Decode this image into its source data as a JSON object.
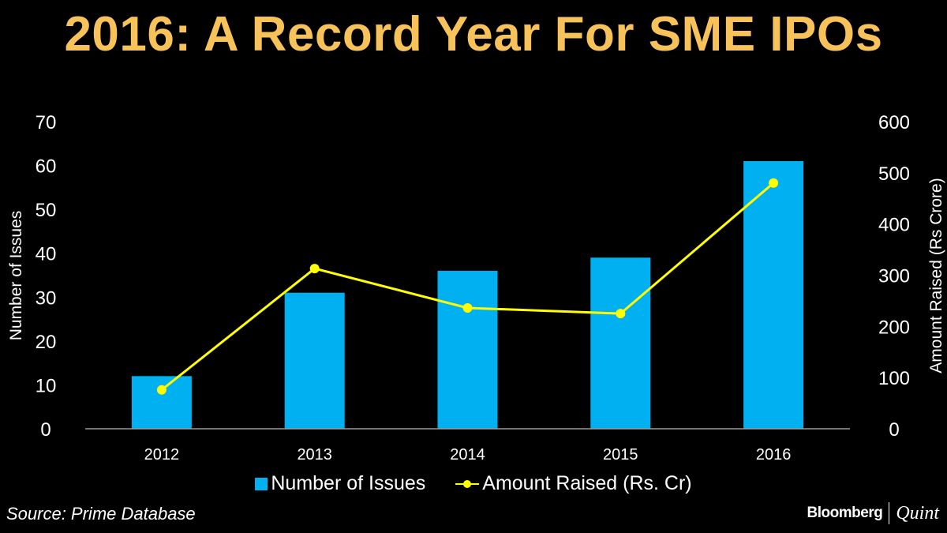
{
  "chart_data": {
    "type": "bar+line",
    "title": "2016: A Record Year For SME IPOs",
    "categories": [
      "2012",
      "2013",
      "2014",
      "2015",
      "2016"
    ],
    "series": [
      {
        "name": "Number of Issues",
        "type": "bar",
        "axis": "left",
        "color": "#00b0f0",
        "values": [
          12,
          31,
          36,
          39,
          61
        ]
      },
      {
        "name": "Amount Raised (Rs. Cr)",
        "type": "line",
        "axis": "right",
        "color": "#ffff00",
        "values": [
          76,
          313,
          236,
          225,
          480
        ]
      }
    ],
    "ylabel": "Number of Issues",
    "ylim": [
      0,
      70
    ],
    "yticks": [
      "0",
      "10",
      "20",
      "30",
      "40",
      "50",
      "60",
      "70"
    ],
    "y2label": "Amount Raised (Rs Crore)",
    "y2lim": [
      0,
      600
    ],
    "y2ticks": [
      "0",
      "100",
      "200",
      "300",
      "400",
      "500",
      "600"
    ],
    "grid": false,
    "legend": "bottom"
  },
  "footer": {
    "source": "Source: Prime Database",
    "brand_left": "Bloomberg",
    "brand_right": "Quint"
  }
}
